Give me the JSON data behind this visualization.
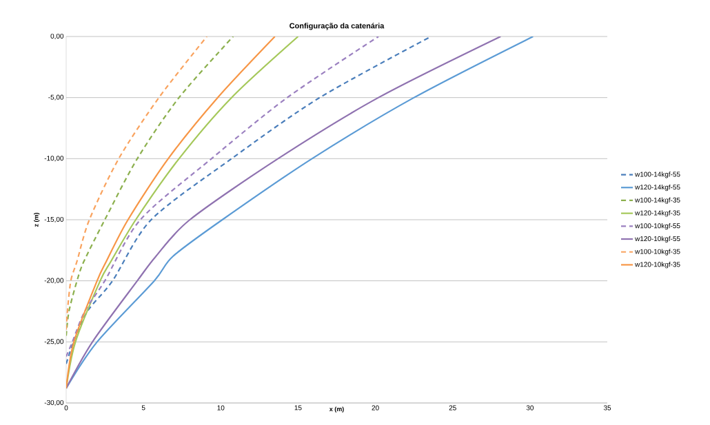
{
  "chart_data": {
    "type": "line",
    "title": "Configuração da catenária",
    "xlabel": "x (m)",
    "ylabel": "z (m)",
    "xlim": [
      0,
      35
    ],
    "xticks": [
      0,
      5,
      10,
      15,
      20,
      25,
      30,
      35
    ],
    "ylim": [
      -30,
      0
    ],
    "yticks": [
      {
        "value": -30,
        "label": "-30,00"
      },
      {
        "value": -25,
        "label": "-25,00"
      },
      {
        "value": -20,
        "label": "-20,00"
      },
      {
        "value": -15,
        "label": "-15,00"
      },
      {
        "value": -10,
        "label": "-10,00"
      },
      {
        "value": -5,
        "label": "-5,00"
      },
      {
        "value": 0,
        "label": "0,00"
      }
    ],
    "grid": "y",
    "legend": "right",
    "marker": "none",
    "series": [
      {
        "name": "w100-14kgf-55",
        "color": "#4a7ebb",
        "line_style": "dashed",
        "x": [
          0,
          0.48,
          1.37,
          3.0,
          5.5,
          10.7,
          16.4,
          23.6
        ],
        "values": [
          -26.8,
          -25,
          -22.5,
          -20,
          -15,
          -10,
          -5,
          0
        ]
      },
      {
        "name": "w120-14kgf-55",
        "color": "#5b9bd5",
        "line_style": "solid",
        "x": [
          0,
          2.0,
          5.7,
          6.9,
          10.1,
          15.9,
          22.5,
          30.2
        ],
        "values": [
          -28.8,
          -25,
          -20,
          -18,
          -15,
          -10,
          -5,
          0
        ]
      },
      {
        "name": "w100-14kgf-35",
        "color": "#8cb04e",
        "line_style": "dashed",
        "x": [
          0,
          0.18,
          0.7,
          1.15,
          2.5,
          4.6,
          7.3,
          10.8
        ],
        "values": [
          -24.5,
          -22.5,
          -20,
          -18.4,
          -15,
          -10,
          -5,
          0
        ]
      },
      {
        "name": "w120-14kgf-35",
        "color": "#a5c85a",
        "line_style": "solid",
        "x": [
          0,
          0.6,
          2.2,
          2.9,
          4.5,
          7.3,
          10.7,
          15.0
        ],
        "values": [
          -28.8,
          -25,
          -20,
          -18.4,
          -15,
          -10,
          -5,
          0
        ]
      },
      {
        "name": "w100-10kgf-55",
        "color": "#9b80c0",
        "line_style": "dashed",
        "x": [
          0,
          0.4,
          1.2,
          2.5,
          4.8,
          9.4,
          14.3,
          20.2
        ],
        "values": [
          -26.2,
          -25,
          -22.5,
          -20,
          -15,
          -10,
          -5,
          0
        ]
      },
      {
        "name": "w120-10kgf-55",
        "color": "#8f72b0",
        "line_style": "solid",
        "x": [
          0,
          1.7,
          4.6,
          5.8,
          8.0,
          13.7,
          20.2,
          28.1
        ],
        "values": [
          -28.8,
          -25,
          -20,
          -18,
          -15,
          -10,
          -5,
          0
        ]
      },
      {
        "name": "w100-10kgf-35",
        "color": "#f9a35f",
        "line_style": "dashed",
        "x": [
          0,
          0.08,
          0.3,
          0.7,
          1.5,
          3.4,
          6.0,
          9.1
        ],
        "values": [
          -24.0,
          -22.5,
          -20,
          -18.4,
          -15,
          -10,
          -5,
          0
        ]
      },
      {
        "name": "w120-10kgf-35",
        "color": "#f79646",
        "line_style": "solid",
        "x": [
          0,
          0.5,
          2.0,
          2.6,
          4.0,
          6.6,
          9.8,
          13.5
        ],
        "values": [
          -28.8,
          -25,
          -20,
          -18.4,
          -15,
          -10,
          -5,
          0
        ]
      }
    ]
  }
}
